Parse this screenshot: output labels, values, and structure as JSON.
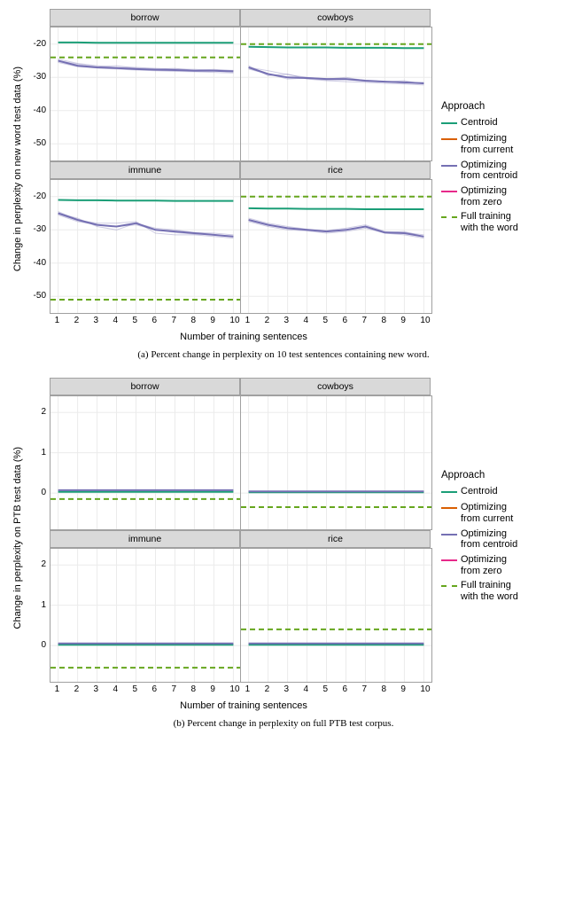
{
  "colors": {
    "centroid": "#1b9e77",
    "opt_current": "#d95f02",
    "opt_centroid": "#7570b3",
    "opt_zero": "#e7298a",
    "full_training": "#66a61e",
    "grid": "#ebebeb",
    "panel_border": "#a0a0a0",
    "facet_bg": "#d9d9d9",
    "bg": "#ffffff"
  },
  "legend": {
    "title": "Approach",
    "items": [
      {
        "key": "centroid",
        "label": "Centroid",
        "dashed": false
      },
      {
        "key": "opt_current",
        "label": "Optimizing\nfrom current",
        "dashed": false
      },
      {
        "key": "opt_centroid",
        "label": "Optimizing\nfrom centroid",
        "dashed": false
      },
      {
        "key": "opt_zero",
        "label": "Optimizing\nfrom zero",
        "dashed": false
      },
      {
        "key": "full_training",
        "label": "Full training\nwith the word",
        "dashed": true
      }
    ]
  },
  "x_ticks": [
    1,
    2,
    3,
    4,
    5,
    6,
    7,
    8,
    9,
    10
  ],
  "figure_a": {
    "y_label": "Change in perplexity on new word test data (%)",
    "x_label": "Number of training sentences",
    "caption": "(a) Percent change in perplexity on 10 test sentences containing new word.",
    "ylim": [
      -55,
      -15
    ],
    "y_ticks": [
      -20,
      -30,
      -40,
      -50
    ],
    "panels": [
      {
        "title": "borrow",
        "centroid": [
          -19.5,
          -19.5,
          -19.6,
          -19.6,
          -19.6,
          -19.6,
          -19.6,
          -19.6,
          -19.6,
          -19.6
        ],
        "opt_centroid": [
          -25,
          -26.5,
          -27,
          -27.2,
          -27.5,
          -27.7,
          -27.8,
          -28,
          -28,
          -28.2
        ],
        "full_training": -24,
        "runs": [
          [
            -25,
            -26,
            -26.8,
            -26.5,
            -27.2,
            -27.5,
            -27.3,
            -27.9,
            -27.6,
            -28
          ],
          [
            -25.5,
            -26.8,
            -27.2,
            -27.5,
            -27.8,
            -28,
            -28.2,
            -28.3,
            -28.5,
            -28.7
          ],
          [
            -24.5,
            -25.8,
            -26.5,
            -27,
            -27,
            -27.3,
            -27.5,
            -27.6,
            -27.8,
            -27.9
          ]
        ]
      },
      {
        "title": "cowboys",
        "centroid": [
          -20.8,
          -20.9,
          -21,
          -21,
          -21,
          -21.1,
          -21.1,
          -21.1,
          -21.2,
          -21.2
        ],
        "opt_centroid": [
          -27,
          -29,
          -30,
          -30.2,
          -30.5,
          -30.5,
          -31,
          -31.3,
          -31.5,
          -31.8
        ],
        "full_training": -20,
        "runs": [
          [
            -27,
            -28,
            -29.2,
            -30,
            -30.5,
            -30,
            -31,
            -31.2,
            -31.8,
            -31.5
          ],
          [
            -26.5,
            -29.5,
            -29,
            -30.5,
            -31,
            -31.3,
            -31.5,
            -31.8,
            -32,
            -32.3
          ],
          [
            -27.5,
            -29,
            -30.5,
            -30.2,
            -30.8,
            -30.7,
            -31.2,
            -31.4,
            -31,
            -32
          ]
        ]
      },
      {
        "title": "immune",
        "centroid": [
          -21,
          -21.1,
          -21.1,
          -21.2,
          -21.2,
          -21.2,
          -21.3,
          -21.3,
          -21.3,
          -21.3
        ],
        "opt_centroid": [
          -25,
          -27,
          -28.5,
          -29,
          -28,
          -30,
          -30.5,
          -31,
          -31.5,
          -32
        ],
        "full_training": -51,
        "runs": [
          [
            -25,
            -26.5,
            -29,
            -30,
            -28,
            -29.5,
            -30,
            -30.8,
            -31,
            -31.5
          ],
          [
            -24.5,
            -27,
            -28,
            -28,
            -27.5,
            -31,
            -31.5,
            -31.5,
            -32,
            -32.5
          ],
          [
            -25.5,
            -27.5,
            -28.5,
            -29,
            -28.5,
            -30,
            -30.8,
            -31.3,
            -31.5,
            -32
          ]
        ]
      },
      {
        "title": "rice",
        "centroid": [
          -23.5,
          -23.6,
          -23.6,
          -23.7,
          -23.7,
          -23.7,
          -23.8,
          -23.8,
          -23.8,
          -23.8
        ],
        "opt_centroid": [
          -27,
          -28.5,
          -29.5,
          -30,
          -30.5,
          -30,
          -29,
          -30.8,
          -31,
          -32
        ],
        "full_training": -20,
        "runs": [
          [
            -26.5,
            -28,
            -29,
            -29.8,
            -30.2,
            -29.5,
            -28.5,
            -30.5,
            -30.8,
            -31.5
          ],
          [
            -27.5,
            -29,
            -30,
            -30.3,
            -31,
            -30.5,
            -29.5,
            -31,
            -31.5,
            -32.5
          ],
          [
            -27,
            -28.5,
            -29.5,
            -30,
            -30.5,
            -30,
            -29,
            -30.8,
            -30.5,
            -32
          ]
        ]
      }
    ]
  },
  "figure_b": {
    "y_label": "Change in perplexity on PTB test data (%)",
    "x_label": "Number of training sentences",
    "caption": "(b) Percent change in perplexity on full PTB test corpus.",
    "ylim": [
      -0.9,
      2.4
    ],
    "y_ticks": [
      2,
      1,
      0
    ],
    "panels": [
      {
        "title": "borrow",
        "centroid": [
          0.03,
          0.03,
          0.03,
          0.03,
          0.03,
          0.03,
          0.03,
          0.03,
          0.03,
          0.03
        ],
        "opt_centroid": [
          0.07,
          0.07,
          0.07,
          0.07,
          0.07,
          0.07,
          0.07,
          0.07,
          0.07,
          0.07
        ],
        "full_training": -0.15
      },
      {
        "title": "cowboys",
        "centroid": [
          0.02,
          0.02,
          0.02,
          0.02,
          0.02,
          0.02,
          0.02,
          0.02,
          0.02,
          0.02
        ],
        "opt_centroid": [
          0.04,
          0.04,
          0.04,
          0.04,
          0.04,
          0.04,
          0.04,
          0.04,
          0.04,
          0.04
        ],
        "full_training": -0.35
      },
      {
        "title": "immune",
        "centroid": [
          0.02,
          0.02,
          0.02,
          0.02,
          0.02,
          0.02,
          0.02,
          0.02,
          0.02,
          0.02
        ],
        "opt_centroid": [
          0.05,
          0.05,
          0.05,
          0.05,
          0.05,
          0.05,
          0.05,
          0.05,
          0.05,
          0.05
        ],
        "full_training": -0.55
      },
      {
        "title": "rice",
        "centroid": [
          0.02,
          0.02,
          0.02,
          0.02,
          0.02,
          0.02,
          0.02,
          0.02,
          0.02,
          0.02
        ],
        "opt_centroid": [
          0.05,
          0.05,
          0.05,
          0.05,
          0.05,
          0.05,
          0.05,
          0.05,
          0.05,
          0.05
        ],
        "full_training": 0.4
      }
    ]
  }
}
